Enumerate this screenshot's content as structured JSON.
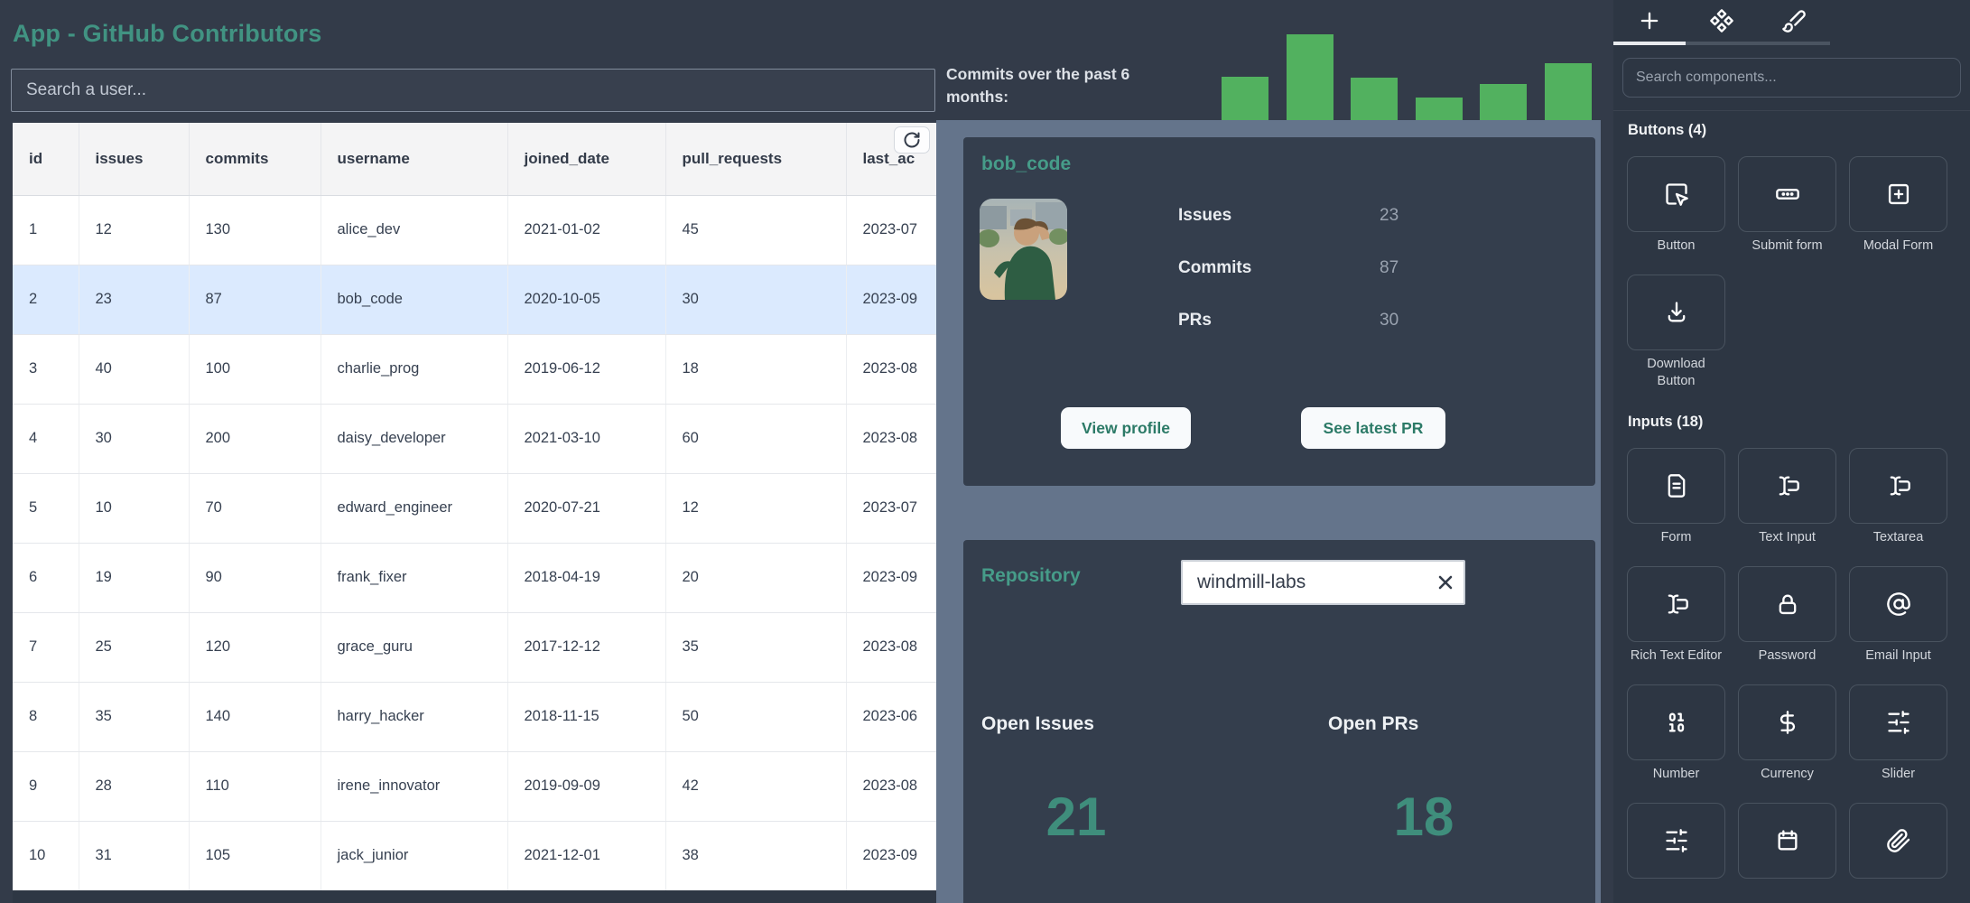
{
  "window": {
    "title": "App - GitHub Contributors"
  },
  "colors": {
    "background": "#333b49",
    "panel": "#64748b",
    "card": "#343e4d",
    "sidebar": "#2d3643",
    "accent_teal": "#419382",
    "metric_teal": "#3f8e7c",
    "bar_green": "#52b15f",
    "selected_row": "#dbeafe"
  },
  "left": {
    "search_placeholder": "Search a user...",
    "refresh_icon": "refresh-icon",
    "table": {
      "columns": [
        "id",
        "issues",
        "commits",
        "username",
        "joined_date",
        "pull_requests",
        "last_ac"
      ],
      "rows": [
        [
          "1",
          "12",
          "130",
          "alice_dev",
          "2021-01-02",
          "45",
          "2023-07"
        ],
        [
          "2",
          "23",
          "87",
          "bob_code",
          "2020-10-05",
          "30",
          "2023-09"
        ],
        [
          "3",
          "40",
          "100",
          "charlie_prog",
          "2019-06-12",
          "18",
          "2023-08"
        ],
        [
          "4",
          "30",
          "200",
          "daisy_developer",
          "2021-03-10",
          "60",
          "2023-08"
        ],
        [
          "5",
          "10",
          "70",
          "edward_engineer",
          "2020-07-21",
          "12",
          "2023-07"
        ],
        [
          "6",
          "19",
          "90",
          "frank_fixer",
          "2018-04-19",
          "20",
          "2023-09"
        ],
        [
          "7",
          "25",
          "120",
          "grace_guru",
          "2017-12-12",
          "35",
          "2023-08"
        ],
        [
          "8",
          "35",
          "140",
          "harry_hacker",
          "2018-11-15",
          "50",
          "2023-06"
        ],
        [
          "9",
          "28",
          "110",
          "irene_innovator",
          "2019-09-09",
          "42",
          "2023-08"
        ],
        [
          "10",
          "31",
          "105",
          "jack_junior",
          "2021-12-01",
          "38",
          "2023-09"
        ]
      ],
      "selected_row_id": "2"
    }
  },
  "middle": {
    "commits_label": "Commits over the past 6 months:",
    "profile_card": {
      "username": "bob_code",
      "avatar": "bob-avatar",
      "stats": [
        {
          "label": "Issues",
          "value": "23"
        },
        {
          "label": "Commits",
          "value": "87"
        },
        {
          "label": "PRs",
          "value": "30"
        }
      ],
      "actions": [
        {
          "label": "View profile"
        },
        {
          "label": "See latest PR"
        }
      ]
    },
    "repository_card": {
      "title": "Repository",
      "repo_input_value": "windmill-labs",
      "clear_icon": "clear-icon",
      "metrics": [
        {
          "label": "Open Issues",
          "value": "21"
        },
        {
          "label": "Open PRs",
          "value": "18"
        }
      ]
    }
  },
  "chart_data": {
    "type": "bar",
    "title": "Commits over the past 6 months",
    "categories": [
      "",
      "",
      "",
      "",
      "",
      ""
    ],
    "values": [
      48,
      95,
      47,
      25,
      40,
      63
    ],
    "ylim": [
      0,
      95
    ],
    "color": "#52b15f",
    "grid": false,
    "axes_visible": false
  },
  "sidebar": {
    "tabs": [
      {
        "icon": "plus-icon",
        "active": true
      },
      {
        "icon": "components-icon",
        "active": false
      },
      {
        "icon": "paintbrush-icon",
        "active": false
      }
    ],
    "search_placeholder": "Search components...",
    "sections": [
      {
        "title": "Buttons (4)",
        "items": [
          {
            "label": "Button",
            "icon": "button-click-icon"
          },
          {
            "label": "Submit form",
            "icon": "submit-form-icon"
          },
          {
            "label": "Modal Form",
            "icon": "modal-form-icon"
          },
          {
            "label": "Download Button",
            "icon": "download-icon"
          }
        ]
      },
      {
        "title": "Inputs (18)",
        "items": [
          {
            "label": "Form",
            "icon": "form-icon"
          },
          {
            "label": "Text Input",
            "icon": "text-cursor-icon"
          },
          {
            "label": "Textarea",
            "icon": "text-cursor-icon"
          },
          {
            "label": "Rich Text Editor",
            "icon": "text-cursor-icon"
          },
          {
            "label": "Password",
            "icon": "lock-icon"
          },
          {
            "label": "Email Input",
            "icon": "at-sign-icon"
          },
          {
            "label": "Number",
            "icon": "binary-icon"
          },
          {
            "label": "Currency",
            "icon": "dollar-icon"
          },
          {
            "label": "Slider",
            "icon": "sliders-icon"
          },
          {
            "label": "",
            "icon": "sliders-icon"
          },
          {
            "label": "",
            "icon": "calendar-icon"
          },
          {
            "label": "",
            "icon": "paperclip-icon"
          }
        ]
      }
    ]
  }
}
